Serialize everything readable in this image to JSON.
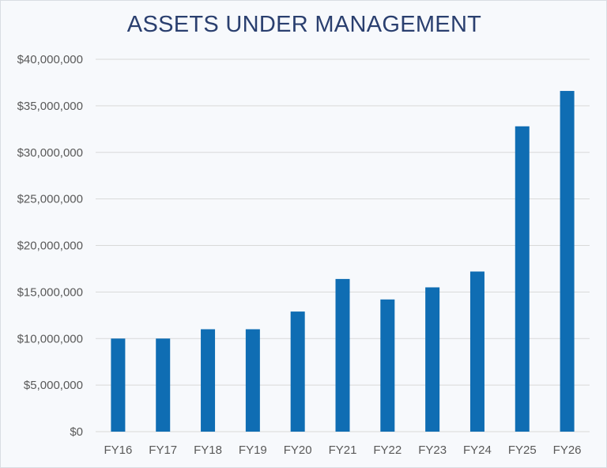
{
  "chart_data": {
    "type": "bar",
    "title": "ASSETS UNDER MANAGEMENT",
    "xlabel": "",
    "ylabel": "",
    "categories": [
      "FY16",
      "FY17",
      "FY18",
      "FY19",
      "FY20",
      "FY21",
      "FY22",
      "FY23",
      "FY24",
      "FY25",
      "FY26"
    ],
    "values": [
      10000000,
      10000000,
      11000000,
      11000000,
      12900000,
      16400000,
      14200000,
      15500000,
      17200000,
      32800000,
      36600000
    ],
    "ylim": [
      0,
      40000000
    ],
    "ytick_values": [
      0,
      5000000,
      10000000,
      15000000,
      20000000,
      25000000,
      30000000,
      35000000,
      40000000
    ],
    "ytick_labels": [
      "$0",
      "$5,000,000",
      "$10,000,000",
      "$15,000,000",
      "$20,000,000",
      "$25,000,000",
      "$30,000,000",
      "$35,000,000",
      "$40,000,000"
    ],
    "grid": true,
    "legend": "none",
    "colors": {
      "bar": "#0f6db3",
      "grid": "#d9d9d9",
      "title": "#2a3f6f",
      "tick_text": "#595959",
      "background": "#f7f9fc"
    }
  }
}
